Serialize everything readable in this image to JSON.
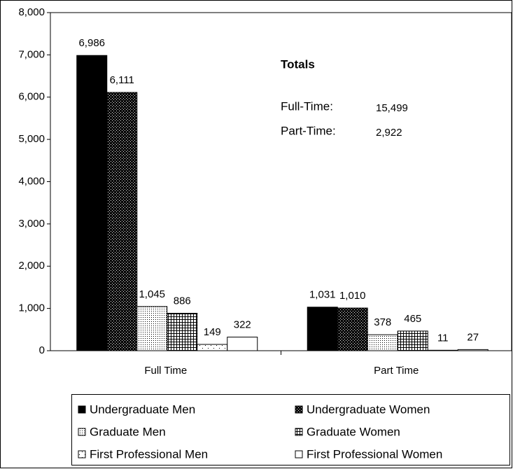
{
  "chart_data": {
    "type": "bar",
    "categories": [
      "Full Time",
      "Part Time"
    ],
    "series": [
      {
        "name": "Undergraduate Men",
        "color": "#000000",
        "pattern": "solid",
        "values": [
          6986,
          1031
        ],
        "value_labels": [
          "6,986",
          "1,031"
        ]
      },
      {
        "name": "Undergraduate Women",
        "color": "#000000",
        "pattern": "checker",
        "values": [
          6111,
          1010
        ],
        "value_labels": [
          "6,111",
          "1,010"
        ]
      },
      {
        "name": "Graduate Men",
        "color": "#000000",
        "pattern": "dots",
        "values": [
          1045,
          378
        ],
        "value_labels": [
          "1,045",
          "378"
        ]
      },
      {
        "name": "Graduate Women",
        "color": "#000000",
        "pattern": "grid",
        "values": [
          886,
          465
        ],
        "value_labels": [
          "886",
          "465"
        ]
      },
      {
        "name": "First Professional Men",
        "color": "#000000",
        "pattern": "sparse-dots",
        "values": [
          149,
          11
        ],
        "value_labels": [
          "149",
          "11"
        ]
      },
      {
        "name": "First Professional Women",
        "color": "#000000",
        "pattern": "none",
        "values": [
          322,
          27
        ],
        "value_labels": [
          "322",
          "27"
        ]
      }
    ],
    "ylim": [
      0,
      8000
    ],
    "yticks": [
      0,
      {
        "value": 1000,
        "label": "1,000"
      },
      {
        "value": 2000,
        "label": "2,000"
      },
      {
        "value": 3000,
        "label": "3,000"
      },
      {
        "value": 4000,
        "label": "4,000"
      },
      {
        "value": 5000,
        "label": "5,000"
      },
      {
        "value": 6000,
        "label": "6,000"
      },
      {
        "value": 7000,
        "label": "7,000"
      },
      {
        "value": 8000,
        "label": "8,000"
      }
    ],
    "grid": false,
    "totals": {
      "title": "Totals",
      "rows": [
        {
          "label": "Full-Time:",
          "value": "15,499"
        },
        {
          "label": "Part-Time:",
          "value": "2,922"
        }
      ]
    }
  }
}
